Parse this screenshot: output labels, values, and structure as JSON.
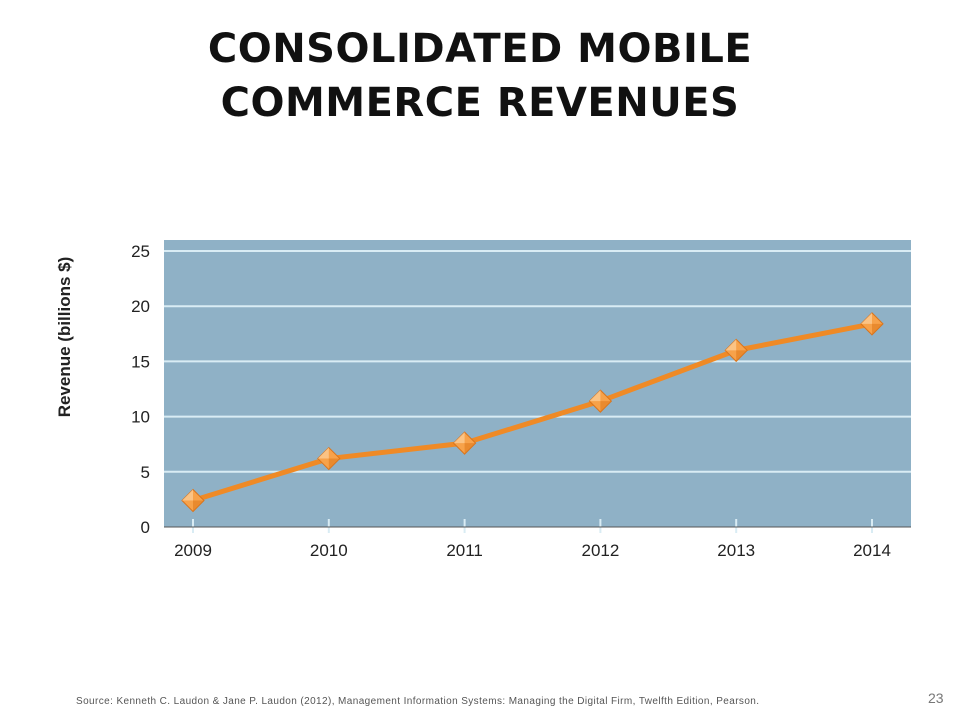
{
  "slide": {
    "title_line1": "CONSOLIDATED MOBILE",
    "title_line2": "COMMERCE REVENUES",
    "source": "Source: Kenneth C. Laudon & Jane P. Laudon (2012), Management Information  Systems: Managing the Digital Firm, Twelfth Edition, Pearson.",
    "page_number": "23"
  },
  "colors": {
    "plot_background": "#8fb1c6",
    "gridline": "#d9ecf4",
    "line": "#ef8a26",
    "marker_fill": "#f7a24a",
    "marker_highlight": "#fbc98e",
    "axis_text": "#222222"
  },
  "chart_data": {
    "type": "line",
    "title": "",
    "xlabel": "",
    "ylabel": "Revenue (billions $)",
    "categories": [
      "2009",
      "2010",
      "2011",
      "2012",
      "2013",
      "2014"
    ],
    "series": [
      {
        "values": [
          2.4,
          6.2,
          7.6,
          11.4,
          16.0,
          18.4
        ]
      }
    ],
    "ylim": [
      0,
      26
    ],
    "yticks": [
      0,
      5,
      10,
      15,
      20,
      25
    ],
    "grid": true,
    "legend": "none",
    "marker": "diamond"
  }
}
